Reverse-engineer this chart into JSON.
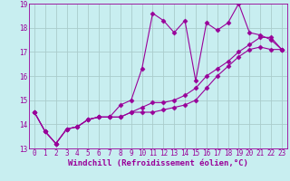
{
  "title": "",
  "xlabel": "Windchill (Refroidissement éolien,°C)",
  "ylabel": "",
  "background_color": "#c8eef0",
  "grid_color": "#aacccc",
  "line_color": "#990099",
  "xlim": [
    -0.5,
    23.5
  ],
  "ylim": [
    13,
    19
  ],
  "xticks": [
    0,
    1,
    2,
    3,
    4,
    5,
    6,
    7,
    8,
    9,
    10,
    11,
    12,
    13,
    14,
    15,
    16,
    17,
    18,
    19,
    20,
    21,
    22,
    23
  ],
  "yticks": [
    13,
    14,
    15,
    16,
    17,
    18,
    19
  ],
  "lines": [
    {
      "x": [
        0,
        1,
        2,
        3,
        4,
        5,
        6,
        7,
        8,
        9,
        10,
        11,
        12,
        13,
        14,
        15,
        16,
        17,
        18,
        19,
        20,
        21,
        22,
        23
      ],
      "y": [
        14.5,
        13.7,
        13.2,
        13.8,
        13.9,
        14.2,
        14.3,
        14.3,
        14.8,
        15.0,
        16.3,
        18.6,
        18.3,
        17.8,
        18.3,
        15.8,
        18.2,
        17.9,
        18.2,
        19.0,
        17.8,
        17.7,
        17.5,
        17.1
      ]
    },
    {
      "x": [
        0,
        1,
        2,
        3,
        4,
        5,
        6,
        7,
        8,
        9,
        10,
        11,
        12,
        13,
        14,
        15,
        16,
        17,
        18,
        19,
        20,
        21,
        22,
        23
      ],
      "y": [
        14.5,
        13.7,
        13.2,
        13.8,
        13.9,
        14.2,
        14.3,
        14.3,
        14.3,
        14.5,
        14.5,
        14.5,
        14.6,
        14.7,
        14.8,
        15.0,
        15.5,
        16.0,
        16.4,
        16.8,
        17.1,
        17.2,
        17.1,
        17.1
      ]
    },
    {
      "x": [
        0,
        1,
        2,
        3,
        4,
        5,
        6,
        7,
        8,
        9,
        10,
        11,
        12,
        13,
        14,
        15,
        16,
        17,
        18,
        19,
        20,
        21,
        22,
        23
      ],
      "y": [
        14.5,
        13.7,
        13.2,
        13.8,
        13.9,
        14.2,
        14.3,
        14.3,
        14.3,
        14.5,
        14.7,
        14.9,
        14.9,
        15.0,
        15.2,
        15.5,
        16.0,
        16.3,
        16.6,
        17.0,
        17.3,
        17.6,
        17.6,
        17.1
      ]
    }
  ],
  "marker": "D",
  "marker_size": 2.5,
  "line_width": 0.8,
  "xlabel_fontsize": 6.5,
  "tick_fontsize": 5.5
}
